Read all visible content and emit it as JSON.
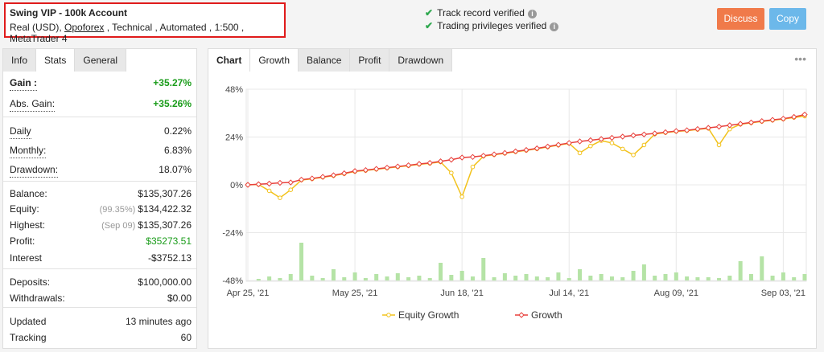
{
  "header": {
    "title": "Swing VIP - 100k Account",
    "subtitle": [
      "Real (USD), ",
      "Opoforex",
      " , Technical , Automated , 1:500 , MetaTrader 4"
    ],
    "verified": [
      "Track record verified",
      "Trading privileges verified"
    ],
    "buttons": [
      "Discuss",
      "Copy"
    ]
  },
  "stats_tabs": [
    "Info",
    "Stats",
    "General"
  ],
  "stats": [
    [
      {
        "label": "Gain :",
        "value": "+35.27%",
        "color": "#1a9c1a"
      },
      {
        "label": "Abs. Gain:",
        "value": "+35.26%",
        "color": "#1a9c1a"
      }
    ],
    [
      {
        "label": "Daily",
        "value": "0.22%"
      },
      {
        "label": "Monthly:",
        "value": "6.83%"
      },
      {
        "label": "Drawdown:",
        "value": "18.07%"
      }
    ],
    [
      {
        "label": "Balance:",
        "value": "$135,307.26"
      },
      {
        "label": "Equity:",
        "note": "(99.35%)",
        "value": "$134,422.32"
      },
      {
        "label": "Highest:",
        "note": "(Sep 09)",
        "value": "$135,307.26"
      },
      {
        "label": "Profit:",
        "value": "$35273.51",
        "color": "#1a9c1a"
      },
      {
        "label": "Interest",
        "value": "-$3752.13"
      }
    ],
    [
      {
        "label": "Deposits:",
        "value": "$100,000.00"
      },
      {
        "label": "Withdrawals:",
        "value": "$0.00"
      }
    ],
    [
      {
        "label": "Updated",
        "value": "13 minutes ago"
      },
      {
        "label": "Tracking",
        "value": "60"
      }
    ]
  ],
  "chart_tabs": [
    "Chart",
    "Growth",
    "Balance",
    "Profit",
    "Drawdown"
  ],
  "chart_data": {
    "type": "line",
    "categories": [
      "Apr 25, '21",
      null,
      null,
      null,
      null,
      null,
      null,
      null,
      null,
      null,
      "May 25, '21",
      null,
      null,
      null,
      null,
      null,
      null,
      null,
      null,
      null,
      "Jun 18, '21",
      null,
      null,
      null,
      null,
      null,
      null,
      null,
      null,
      null,
      "Jul 14, '21",
      null,
      null,
      null,
      null,
      null,
      null,
      null,
      null,
      null,
      "Aug 09, '21",
      null,
      null,
      null,
      null,
      null,
      null,
      null,
      null,
      null,
      "Sep 03, '21",
      null,
      null
    ],
    "series": [
      {
        "name": "Equity Growth",
        "color": "#f2c21b",
        "values": [
          0,
          0.2,
          -3,
          -6.5,
          -2.5,
          2.4,
          3.0,
          3.8,
          4.6,
          5.6,
          6.7,
          7.2,
          7.8,
          8.4,
          9.0,
          9.6,
          10.3,
          10.8,
          11.5,
          6.0,
          -6.0,
          9.0,
          14.4,
          15.1,
          15.8,
          16.6,
          17.3,
          18.1,
          19.0,
          19.9,
          20.8,
          16.0,
          19.5,
          22.2,
          21.0,
          18.0,
          15.0,
          20.0,
          25.5,
          26.2,
          26.8,
          27.2,
          27.8,
          28.4,
          20.0,
          28.0,
          30.4,
          31.1,
          31.8,
          32.4,
          33.0,
          33.8,
          34.5
        ]
      },
      {
        "name": "Growth",
        "color": "#e8413c",
        "values": [
          0,
          0.3,
          0.6,
          1.0,
          1.2,
          2.6,
          3.2,
          4.0,
          4.8,
          5.8,
          6.9,
          7.4,
          8.0,
          8.6,
          9.2,
          9.8,
          10.5,
          11.0,
          11.8,
          12.6,
          13.7,
          14.0,
          14.6,
          15.3,
          16.0,
          16.8,
          17.5,
          18.3,
          19.2,
          20.1,
          21.0,
          21.8,
          22.4,
          23.0,
          23.6,
          24.2,
          24.8,
          25.3,
          25.8,
          26.4,
          27.0,
          27.4,
          28.0,
          28.6,
          29.2,
          29.9,
          30.6,
          31.3,
          32.0,
          32.6,
          33.2,
          34.1,
          35.27
        ]
      }
    ],
    "volume": {
      "color": "#b5e3a6",
      "values": [
        0,
        2,
        5,
        3,
        8,
        47,
        6,
        3,
        14,
        4,
        10,
        3,
        8,
        5,
        9,
        4,
        6,
        3,
        22,
        7,
        12,
        5,
        28,
        4,
        9,
        6,
        8,
        5,
        4,
        10,
        3,
        14,
        6,
        8,
        5,
        4,
        12,
        20,
        6,
        8,
        10,
        5,
        4,
        4,
        3,
        6,
        24,
        8,
        30,
        6,
        10,
        4,
        8
      ]
    },
    "ylim": [
      -48,
      48
    ],
    "yticks": [
      {
        "value": -48,
        "label": "-48%"
      },
      {
        "value": -24,
        "label": "-24%"
      },
      {
        "value": 0,
        "label": "0%"
      },
      {
        "value": 24,
        "label": "24%"
      },
      {
        "value": 48,
        "label": "48%"
      }
    ],
    "grid": true
  }
}
